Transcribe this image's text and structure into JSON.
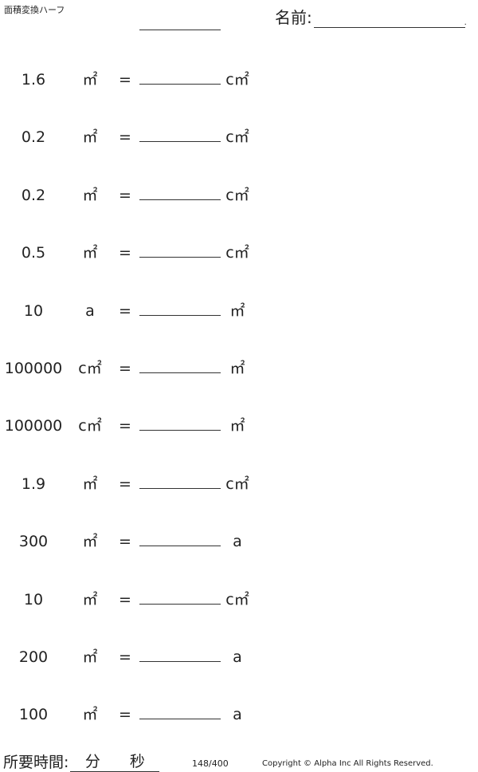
{
  "header": {
    "title": "面積変換ハーフ",
    "name_label": "名前:",
    "name_end": "."
  },
  "problems": [
    {
      "value": "1.6",
      "from": "㎡",
      "to": "c㎡"
    },
    {
      "value": "0.2",
      "from": "㎡",
      "to": "c㎡"
    },
    {
      "value": "0.2",
      "from": "㎡",
      "to": "c㎡"
    },
    {
      "value": "0.5",
      "from": "㎡",
      "to": "c㎡"
    },
    {
      "value": "10",
      "from": "a",
      "to": "㎡"
    },
    {
      "value": "100000",
      "from": "c㎡",
      "to": "㎡"
    },
    {
      "value": "100000",
      "from": "c㎡",
      "to": "㎡"
    },
    {
      "value": "1.9",
      "from": "㎡",
      "to": "c㎡"
    },
    {
      "value": "300",
      "from": "㎡",
      "to": "a"
    },
    {
      "value": "10",
      "from": "㎡",
      "to": "c㎡"
    },
    {
      "value": "200",
      "from": "㎡",
      "to": "a"
    },
    {
      "value": "100",
      "from": "㎡",
      "to": "a"
    }
  ],
  "equals": "=",
  "footer": {
    "time_label": "所要時間:",
    "minutes": "分",
    "seconds": "秒",
    "page": "148/400",
    "copyright": "Copyright © Alpha Inc All Rights Reserved."
  }
}
